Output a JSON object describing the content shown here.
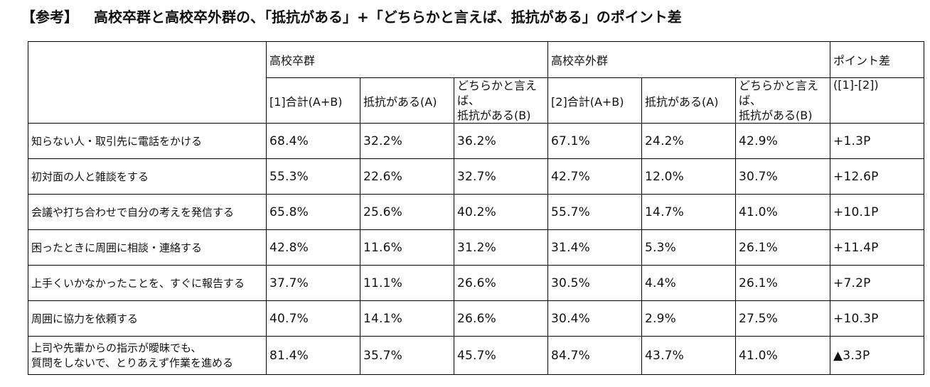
{
  "title": {
    "tag": "【参考】",
    "text": "高校卒群と高校卒外群の、「抵抗がある」+「どちらかと言えば、抵抗がある」のポイント差"
  },
  "table": {
    "groups": {
      "group1": "高校卒群",
      "group2": "高校卒外群",
      "diff": "ポイント差",
      "diff_sub": "([1]-[2])"
    },
    "subheaders": {
      "g1_total": "[1]合計(A+B)",
      "g1_a": "抵抗がある(A)",
      "g1_b_line1": "どちらかと言えば、",
      "g1_b_line2": "抵抗がある(B)",
      "g2_total": "[2]合計(A+B)",
      "g2_a": "抵抗がある(A)",
      "g2_b_line1": "どちらかと言えば、",
      "g2_b_line2": "抵抗がある(B)"
    },
    "rows": [
      {
        "label": "知らない人・取引先に電話をかける",
        "c1": "68.4%",
        "c2": "32.2%",
        "c3": "36.2%",
        "c4": "67.1%",
        "c5": "24.2%",
        "c6": "42.9%",
        "c7": "+1.3P"
      },
      {
        "label": "初対面の人と雑談をする",
        "c1": "55.3%",
        "c2": "22.6%",
        "c3": "32.7%",
        "c4": "42.7%",
        "c5": "12.0%",
        "c6": "30.7%",
        "c7": "+12.6P"
      },
      {
        "label": "会議や打ち合わせで自分の考えを発信する",
        "c1": "65.8%",
        "c2": "25.6%",
        "c3": "40.2%",
        "c4": "55.7%",
        "c5": "14.7%",
        "c6": "41.0%",
        "c7": "+10.1P"
      },
      {
        "label": "困ったときに周囲に相談・連絡する",
        "c1": "42.8%",
        "c2": "11.6%",
        "c3": "31.2%",
        "c4": "31.4%",
        "c5": "5.3%",
        "c6": "26.1%",
        "c7": "+11.4P"
      },
      {
        "label": "上手くいかなかったことを、すぐに報告する",
        "c1": "37.7%",
        "c2": "11.1%",
        "c3": "26.6%",
        "c4": "30.5%",
        "c5": "4.4%",
        "c6": "26.1%",
        "c7": "+7.2P"
      },
      {
        "label": "周囲に協力を依頼する",
        "c1": "40.7%",
        "c2": "14.1%",
        "c3": "26.6%",
        "c4": "30.4%",
        "c5": "2.9%",
        "c6": "27.5%",
        "c7": "+10.3P"
      },
      {
        "label_line1": "上司や先輩からの指示が曖昧でも、",
        "label_line2": "質問をしないで、とりあえず作業を進める",
        "c1": "81.4%",
        "c2": "35.7%",
        "c3": "45.7%",
        "c4": "84.7%",
        "c5": "43.7%",
        "c6": "41.0%",
        "c7": "▲3.3P"
      }
    ]
  }
}
